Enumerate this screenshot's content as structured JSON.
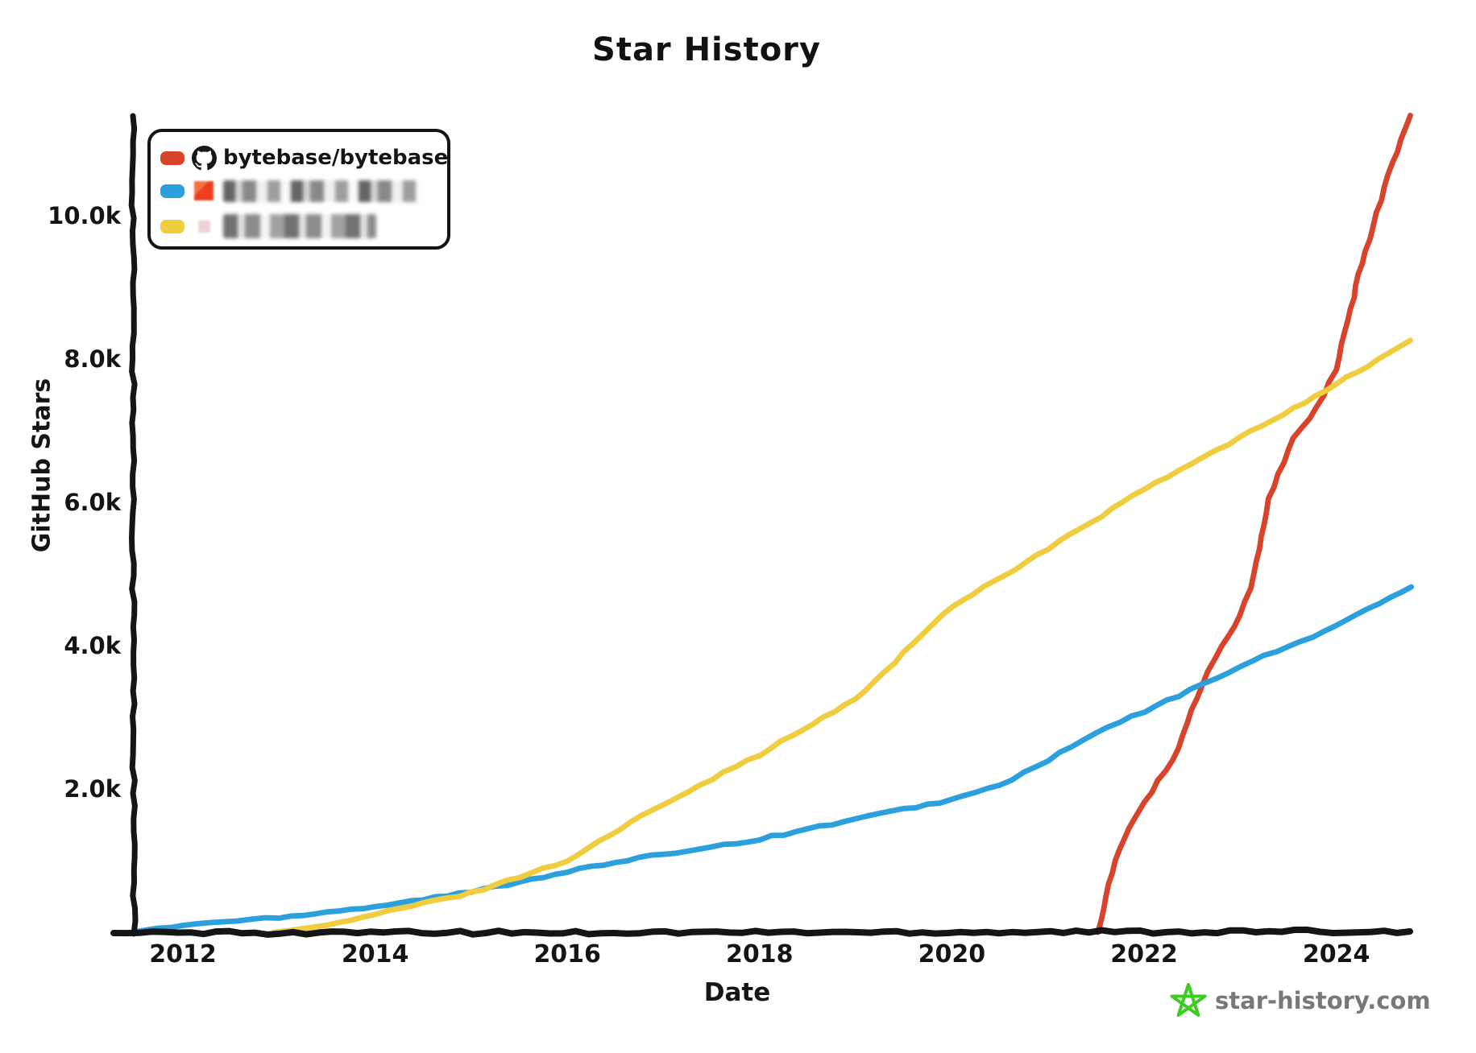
{
  "title": "Star History",
  "y_axis": {
    "label": "GitHub Stars",
    "ticks": [
      {
        "label": "10.0k",
        "value": 10000
      },
      {
        "label": "8.0k",
        "value": 8000
      },
      {
        "label": "6.0k",
        "value": 6000
      },
      {
        "label": "4.0k",
        "value": 4000
      },
      {
        "label": "2.0k",
        "value": 2000
      }
    ]
  },
  "x_axis": {
    "label": "Date",
    "ticks": [
      {
        "label": "2012",
        "year": 2012
      },
      {
        "label": "2014",
        "year": 2014
      },
      {
        "label": "2016",
        "year": 2016
      },
      {
        "label": "2018",
        "year": 2018
      },
      {
        "label": "2020",
        "year": 2020
      },
      {
        "label": "2022",
        "year": 2022
      },
      {
        "label": "2024",
        "year": 2024
      }
    ]
  },
  "legend": {
    "items": [
      {
        "label": "bytebase/bytebase",
        "swatch_color": "#D8442B",
        "icon": "github-octocat",
        "blurred": false
      },
      {
        "label": "",
        "swatch_color": "#2BA0DD",
        "icon": "blurred-avatar-red",
        "blurred": true
      },
      {
        "label": "",
        "swatch_color": "#EFCD3E",
        "icon": "blurred-avatar-pink",
        "blurred": true
      }
    ]
  },
  "watermark": {
    "text": "star-history.com",
    "star_color": "#3DCC1F",
    "text_color": "#787878"
  },
  "colors": {
    "axis": "#151515",
    "red": "#D8442B",
    "blue": "#2BA0DD",
    "yellow": "#EFCD3E"
  },
  "chart_data": {
    "type": "line",
    "title": "Star History",
    "xlabel": "Date",
    "ylabel": "GitHub Stars",
    "x_unit": "decimal_year",
    "x_range": [
      2011.45,
      2024.85
    ],
    "y_range": [
      0,
      11500
    ],
    "grid": false,
    "legend_position": "top-left",
    "series": [
      {
        "name": "bytebase/bytebase",
        "color": "#D8442B",
        "blurred": false,
        "points": [
          [
            2021.52,
            0
          ],
          [
            2021.7,
            1000
          ],
          [
            2021.9,
            1600
          ],
          [
            2022.0,
            1820
          ],
          [
            2022.3,
            2400
          ],
          [
            2022.6,
            3450
          ],
          [
            2022.8,
            4000
          ],
          [
            2023.0,
            4420
          ],
          [
            2023.15,
            5000
          ],
          [
            2023.3,
            6050
          ],
          [
            2023.55,
            6900
          ],
          [
            2023.8,
            7320
          ],
          [
            2024.0,
            7850
          ],
          [
            2024.15,
            8700
          ],
          [
            2024.3,
            9500
          ],
          [
            2024.5,
            10400
          ],
          [
            2024.77,
            11400
          ]
        ]
      },
      {
        "name": null,
        "color": "#2BA0DD",
        "blurred": true,
        "points": [
          [
            2011.48,
            0
          ],
          [
            2012,
            100
          ],
          [
            2013,
            210
          ],
          [
            2014,
            360
          ],
          [
            2015,
            560
          ],
          [
            2016,
            850
          ],
          [
            2017,
            1090
          ],
          [
            2018,
            1300
          ],
          [
            2019,
            1580
          ],
          [
            2020,
            1850
          ],
          [
            2020.5,
            2050
          ],
          [
            2021,
            2400
          ],
          [
            2021.5,
            2780
          ],
          [
            2022,
            3080
          ],
          [
            2022.6,
            3450
          ],
          [
            2023,
            3720
          ],
          [
            2023.5,
            3980
          ],
          [
            2024,
            4280
          ],
          [
            2024.78,
            4820
          ]
        ]
      },
      {
        "name": null,
        "color": "#EFCD3E",
        "blurred": true,
        "points": [
          [
            2012.95,
            0
          ],
          [
            2013.5,
            90
          ],
          [
            2014,
            250
          ],
          [
            2015,
            550
          ],
          [
            2016,
            1000
          ],
          [
            2017,
            1800
          ],
          [
            2018,
            2480
          ],
          [
            2019,
            3250
          ],
          [
            2020,
            4550
          ],
          [
            2021,
            5350
          ],
          [
            2022,
            6180
          ],
          [
            2023,
            6900
          ],
          [
            2024,
            7650
          ],
          [
            2024.77,
            8260
          ]
        ]
      }
    ]
  }
}
